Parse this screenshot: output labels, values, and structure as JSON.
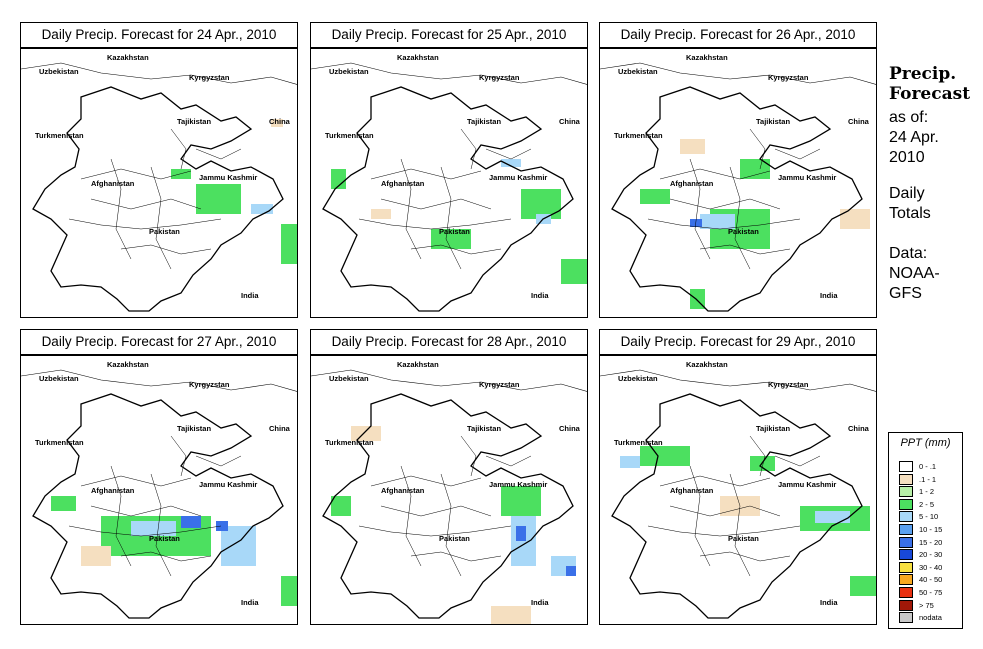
{
  "panels": [
    {
      "title": "Daily Precip. Forecast for  24 Apr., 2010",
      "blobs": [
        [
          "pb",
          180,
          150,
          30,
          14
        ],
        [
          "g",
          175,
          135,
          45,
          30
        ],
        [
          "pb",
          230,
          155,
          22,
          10
        ],
        [
          "g",
          260,
          175,
          25,
          40
        ],
        [
          "t",
          250,
          70,
          12,
          8
        ],
        [
          "g",
          150,
          120,
          20,
          10
        ]
      ]
    },
    {
      "title": "Daily Precip. Forecast for  25 Apr., 2010",
      "blobs": [
        [
          "g",
          20,
          120,
          15,
          20
        ],
        [
          "g",
          210,
          140,
          40,
          30
        ],
        [
          "pb",
          190,
          110,
          20,
          8
        ],
        [
          "g",
          120,
          180,
          40,
          20
        ],
        [
          "t",
          60,
          160,
          20,
          10
        ],
        [
          "g",
          250,
          210,
          30,
          25
        ],
        [
          "pb",
          225,
          165,
          15,
          10
        ]
      ]
    },
    {
      "title": "Daily Precip. Forecast for  26 Apr., 2010",
      "blobs": [
        [
          "g",
          110,
          160,
          60,
          40
        ],
        [
          "pb",
          100,
          165,
          35,
          15
        ],
        [
          "b",
          90,
          170,
          12,
          8
        ],
        [
          "g",
          40,
          140,
          30,
          15
        ],
        [
          "g",
          90,
          240,
          15,
          20
        ],
        [
          "t",
          80,
          90,
          25,
          15
        ],
        [
          "g",
          140,
          110,
          30,
          20
        ],
        [
          "t",
          240,
          160,
          30,
          20
        ]
      ]
    },
    {
      "title": "Daily Precip. Forecast for  27 Apr., 2010",
      "blobs": [
        [
          "g",
          80,
          160,
          110,
          40
        ],
        [
          "pb",
          110,
          165,
          45,
          15
        ],
        [
          "b",
          160,
          160,
          20,
          12
        ],
        [
          "pb",
          200,
          170,
          35,
          40
        ],
        [
          "b",
          195,
          165,
          12,
          10
        ],
        [
          "g",
          30,
          140,
          25,
          15
        ],
        [
          "g",
          260,
          220,
          25,
          30
        ],
        [
          "t",
          60,
          190,
          30,
          20
        ]
      ]
    },
    {
      "title": "Daily Precip. Forecast for  28 Apr., 2010",
      "blobs": [
        [
          "pb",
          200,
          160,
          25,
          50
        ],
        [
          "b",
          205,
          170,
          10,
          15
        ],
        [
          "g",
          190,
          130,
          40,
          30
        ],
        [
          "pb",
          240,
          200,
          25,
          20
        ],
        [
          "b",
          255,
          210,
          10,
          10
        ],
        [
          "t",
          40,
          70,
          30,
          15
        ],
        [
          "t",
          180,
          250,
          40,
          25
        ],
        [
          "g",
          20,
          140,
          20,
          20
        ]
      ]
    },
    {
      "title": "Daily Precip. Forecast for  29 Apr., 2010",
      "blobs": [
        [
          "g",
          40,
          90,
          50,
          20
        ],
        [
          "pb",
          20,
          100,
          20,
          12
        ],
        [
          "g",
          200,
          150,
          70,
          25
        ],
        [
          "pb",
          215,
          155,
          35,
          12
        ],
        [
          "t",
          120,
          140,
          40,
          20
        ],
        [
          "g",
          250,
          220,
          30,
          20
        ],
        [
          "g",
          150,
          100,
          25,
          15
        ]
      ]
    }
  ],
  "map_labels": [
    "Kazakhstan",
    "Uzbekistan",
    "Kyrgyzstan",
    "Tajikistan",
    "Turkmenistan",
    "China",
    "Afghanistan",
    "Jammu Kashmir",
    "Pakistan",
    "India"
  ],
  "side": {
    "title_line1": "Precip.",
    "title_line2": "Forecast",
    "as_of_1": "as of:",
    "as_of_2": "24 Apr.",
    "as_of_3": "2010",
    "daily_1": "Daily",
    "daily_2": "Totals",
    "data_1": "Data:",
    "data_2": "NOAA-",
    "data_3": "GFS"
  },
  "legend": {
    "title": "PPT (mm)",
    "items": [
      {
        "label": "0 - .1",
        "color": "#ffffff"
      },
      {
        "label": ".1 - 1",
        "color": "#f5dfc0"
      },
      {
        "label": "1 - 2",
        "color": "#b8f0a8"
      },
      {
        "label": "2 - 5",
        "color": "#4ce060"
      },
      {
        "label": "5 - 10",
        "color": "#a8d8f8"
      },
      {
        "label": "10 - 15",
        "color": "#5aa0f0"
      },
      {
        "label": "15 - 20",
        "color": "#3a70e8"
      },
      {
        "label": "20 - 30",
        "color": "#1848d8"
      },
      {
        "label": "30 - 40",
        "color": "#f8e040"
      },
      {
        "label": "40 - 50",
        "color": "#f8a820"
      },
      {
        "label": "50 - 75",
        "color": "#e83010"
      },
      {
        "label": "> 75",
        "color": "#a01808"
      },
      {
        "label": "nodata",
        "color": "#c8c8c8"
      }
    ]
  },
  "colors": {
    "t": "#f5dfc0",
    "g": "#4ce060",
    "lg": "#b8f0a8",
    "pb": "#a8d8f8",
    "b": "#3a70e8"
  }
}
